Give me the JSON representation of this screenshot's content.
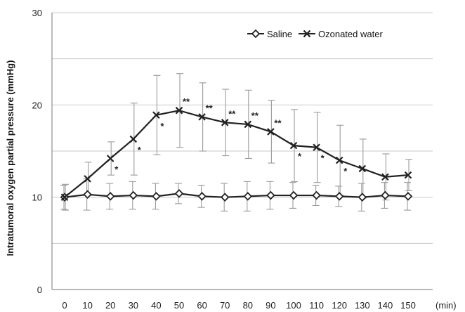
{
  "chart_data": {
    "type": "line",
    "xlabel": "(min)",
    "ylabel": "Intratumoral oxygen partial pressure (mmHg)",
    "ylim": [
      0,
      30
    ],
    "yticks": [
      "0",
      "10",
      "20",
      "30"
    ],
    "grid": true,
    "legend_position": "top-right",
    "x": [
      0,
      10,
      20,
      30,
      40,
      50,
      60,
      70,
      80,
      90,
      100,
      110,
      120,
      130,
      140,
      150
    ],
    "xticks": [
      "0",
      "10",
      "20",
      "30",
      "40",
      "50",
      "60",
      "70",
      "80",
      "90",
      "100",
      "110",
      "120",
      "130",
      "140",
      "150"
    ],
    "series": [
      {
        "name": "Saline",
        "marker": "diamond",
        "values": [
          10.0,
          10.3,
          10.1,
          10.2,
          10.1,
          10.4,
          10.1,
          10.0,
          10.1,
          10.2,
          10.2,
          10.2,
          10.1,
          10.0,
          10.2,
          10.1
        ],
        "err": [
          1.3,
          1.7,
          1.4,
          1.5,
          1.4,
          1.1,
          1.2,
          1.5,
          1.6,
          1.5,
          1.4,
          1.1,
          1.1,
          1.5,
          1.4,
          1.5
        ]
      },
      {
        "name": "Ozonated water",
        "marker": "x",
        "values": [
          10.0,
          12.0,
          14.2,
          16.3,
          18.9,
          19.4,
          18.7,
          18.1,
          17.9,
          17.1,
          15.6,
          15.4,
          14.0,
          13.1,
          12.2,
          12.4
        ],
        "err": [
          1.4,
          1.8,
          1.8,
          3.9,
          4.3,
          4.0,
          3.7,
          3.6,
          3.7,
          3.4,
          3.9,
          3.8,
          3.8,
          3.2,
          2.5,
          1.7
        ]
      }
    ],
    "significance": [
      {
        "x": 20,
        "label": "*"
      },
      {
        "x": 30,
        "label": "*"
      },
      {
        "x": 40,
        "label": "*"
      },
      {
        "x": 50,
        "label": "**"
      },
      {
        "x": 60,
        "label": "**"
      },
      {
        "x": 70,
        "label": "**"
      },
      {
        "x": 80,
        "label": "**"
      },
      {
        "x": 90,
        "label": "**"
      },
      {
        "x": 100,
        "label": "*"
      },
      {
        "x": 110,
        "label": "*"
      },
      {
        "x": 120,
        "label": "*"
      }
    ]
  }
}
